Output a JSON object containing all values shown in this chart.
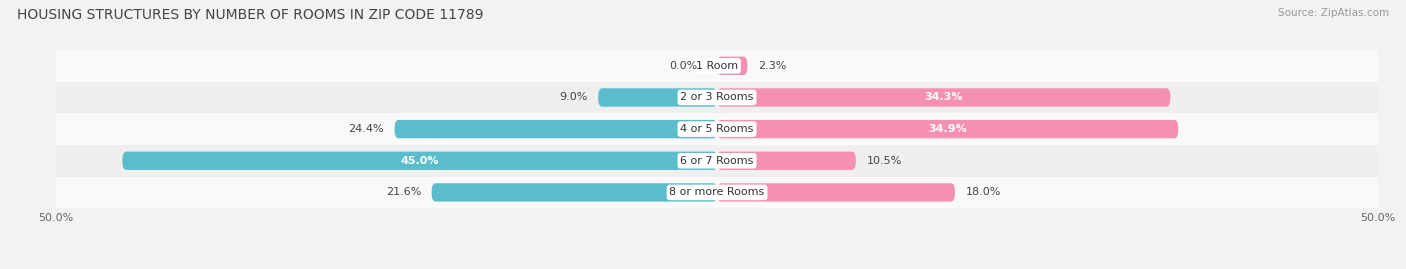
{
  "title": "HOUSING STRUCTURES BY NUMBER OF ROOMS IN ZIP CODE 11789",
  "source": "Source: ZipAtlas.com",
  "categories": [
    "1 Room",
    "2 or 3 Rooms",
    "4 or 5 Rooms",
    "6 or 7 Rooms",
    "8 or more Rooms"
  ],
  "owner_values": [
    0.0,
    9.0,
    24.4,
    45.0,
    21.6
  ],
  "renter_values": [
    2.3,
    34.3,
    34.9,
    10.5,
    18.0
  ],
  "owner_color": "#5bbccc",
  "renter_color": "#f490b0",
  "xlim": 50.0,
  "background_color": "#f2f2f2",
  "row_color_even": "#f9f9f9",
  "row_color_odd": "#efefef",
  "bar_height": 0.58,
  "title_fontsize": 10,
  "label_fontsize": 8,
  "tick_fontsize": 8,
  "source_fontsize": 7.5
}
